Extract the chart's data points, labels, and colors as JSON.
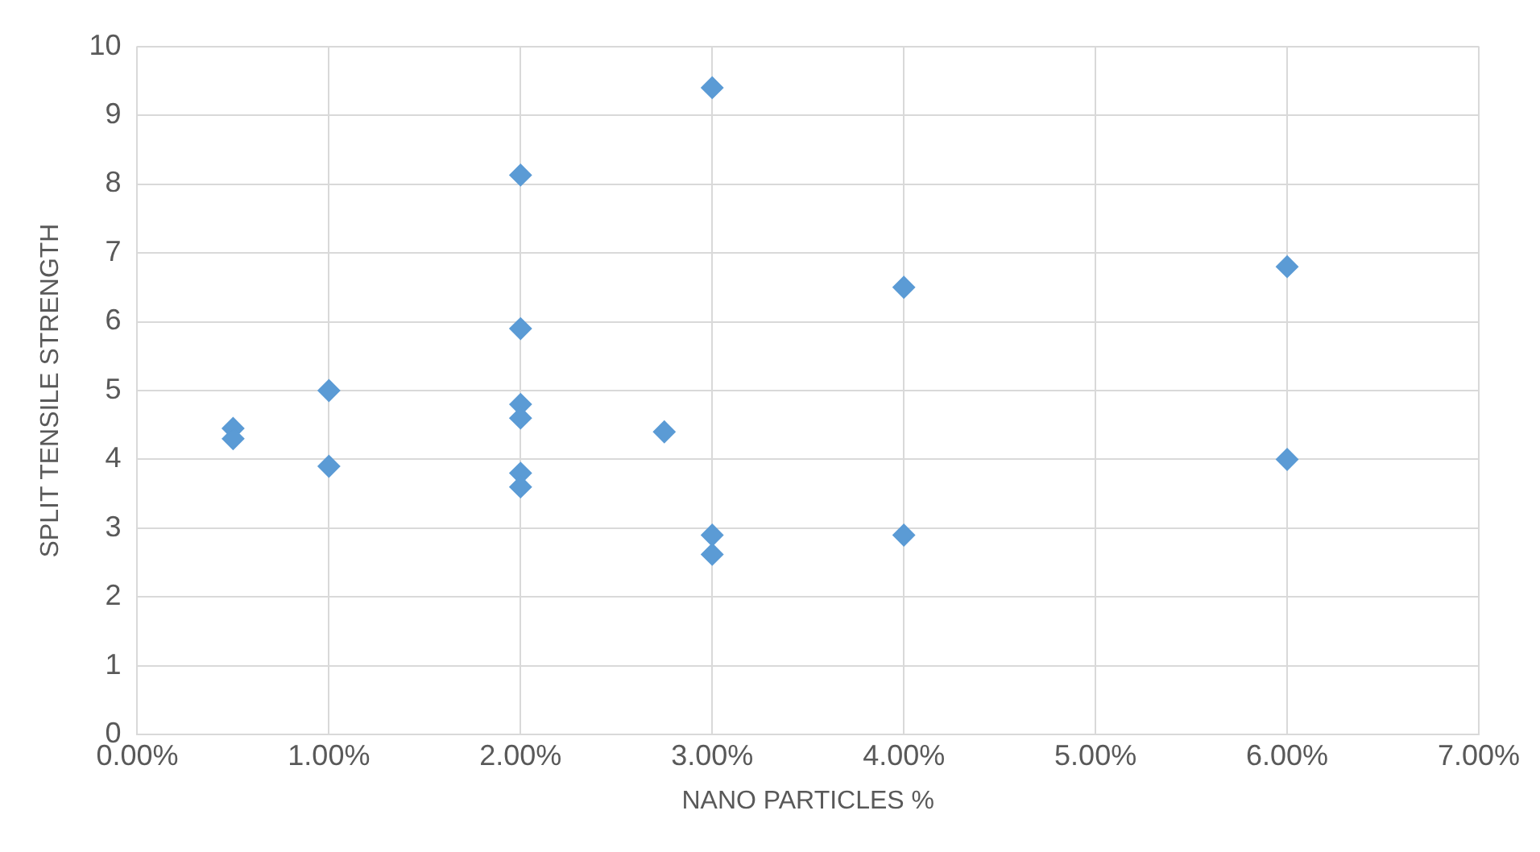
{
  "chart_data": {
    "type": "scatter",
    "xlabel": "NANO PARTICLES %",
    "ylabel": "SPLIT TENSILE STRENGTH",
    "x": [
      0.5,
      0.5,
      1,
      1,
      2,
      2,
      2,
      2,
      2,
      2,
      2.75,
      3,
      3,
      3,
      4,
      4,
      6,
      6
    ],
    "series": [
      {
        "color": "#5b9bd5",
        "values": [
          4.45,
          4.3,
          5.0,
          3.9,
          8.13,
          5.9,
          4.8,
          4.6,
          3.8,
          3.6,
          4.4,
          9.4,
          2.9,
          2.62,
          6.5,
          2.9,
          6.8,
          4.0
        ]
      }
    ],
    "xlim": [
      0,
      7
    ],
    "xticks": [
      {
        "value": 0,
        "label": "0.00%"
      },
      {
        "value": 1,
        "label": "1.00%"
      },
      {
        "value": 2,
        "label": "2.00%"
      },
      {
        "value": 3,
        "label": "3.00%"
      },
      {
        "value": 4,
        "label": "4.00%"
      },
      {
        "value": 5,
        "label": "5.00%"
      },
      {
        "value": 6,
        "label": "6.00%"
      },
      {
        "value": 7,
        "label": "7.00%"
      }
    ],
    "ylim": [
      0,
      10
    ],
    "yticks": [
      0,
      1,
      2,
      3,
      4,
      5,
      6,
      7,
      8,
      9,
      10
    ],
    "grid": true,
    "marker": "diamond",
    "legend": false
  }
}
